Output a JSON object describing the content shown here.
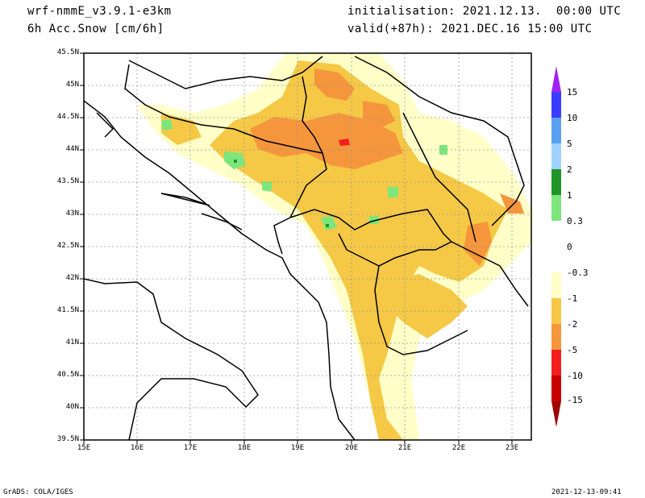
{
  "header": {
    "model": "wrf-nmmE_v3.9.1-e3km",
    "field": "6h Acc.Snow [cm/6h]",
    "init_label": "initialisation: 2021.12.13.  00:00 UTC",
    "valid_label": "valid(+87h): 2021.DEC.16 15:00 UTC"
  },
  "axes": {
    "lat_labels": [
      "45.5N",
      "45N",
      "44.5N",
      "44N",
      "43.5N",
      "43N",
      "42.5N",
      "42N",
      "41.5N",
      "41N",
      "40.5N",
      "40N",
      "39.5N"
    ],
    "lon_labels": [
      "15E",
      "16E",
      "17E",
      "18E",
      "19E",
      "20E",
      "21E",
      "22E",
      "23E"
    ]
  },
  "colorbar": {
    "labels": [
      "15",
      "10",
      "5",
      "2",
      "1",
      "0.3",
      "0",
      "-0.3",
      "-1",
      "-2",
      "-5",
      "-10",
      "-15"
    ],
    "colors": [
      "#a020f0",
      "#3c3cff",
      "#5aa0f0",
      "#a0d2ff",
      "#1e9628",
      "#7ce67c",
      "#ffffff",
      "#ffffc8",
      "#f5c846",
      "#f5963c",
      "#f51e1e",
      "#c80000",
      "#a00000"
    ]
  },
  "footer": {
    "credit": "GrADS: COLA/IGES",
    "timestamp": "2021-12-13-09:41"
  },
  "icons": {
    "colorbar_top": "triangle-up-purple",
    "colorbar_bottom": "triangle-down-darkred"
  }
}
